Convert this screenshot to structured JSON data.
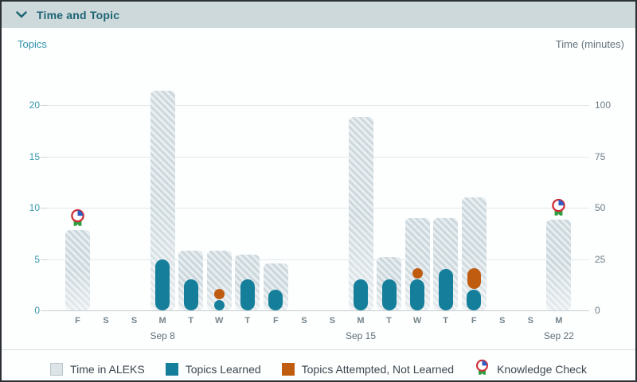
{
  "header": {
    "title": "Time and Topic"
  },
  "legend": {
    "items": [
      {
        "key": "time",
        "label": "Time in ALEKS"
      },
      {
        "key": "learned",
        "label": "Topics Learned"
      },
      {
        "key": "attempted",
        "label": "Topics Attempted, Not Learned"
      },
      {
        "key": "kc",
        "label": "Knowledge Check"
      }
    ]
  },
  "colors": {
    "header_bg": "#cdd9db",
    "header_text": "#1d6472",
    "time_bar_stripe": "#ccd8dd",
    "topics_learned": "#157f9b",
    "topics_attempted": "#c05c10",
    "left_axis_text": "#3b97ae",
    "right_axis_text": "#6e7e87",
    "kc_red": "#cf2e36",
    "kc_blue": "#2f5fc4",
    "kc_green": "#2e9e40"
  },
  "chart_data": {
    "type": "bar",
    "title": "Time and Topic",
    "left_axis": {
      "title": "Topics",
      "ticks": [
        0,
        5,
        10,
        15,
        20
      ]
    },
    "right_axis": {
      "title": "Time (minutes)",
      "ticks": [
        0,
        25,
        50,
        75,
        100
      ]
    },
    "grid": true,
    "days": [
      {
        "label": "F",
        "sublabel": "",
        "time_minutes": 39,
        "topics_learned": 0,
        "topics_attempted_not_learned": 0,
        "knowledge_check": true
      },
      {
        "label": "S",
        "sublabel": "",
        "time_minutes": 0,
        "topics_learned": 0,
        "topics_attempted_not_learned": 0,
        "knowledge_check": false
      },
      {
        "label": "S",
        "sublabel": "",
        "time_minutes": 0,
        "topics_learned": 0,
        "topics_attempted_not_learned": 0,
        "knowledge_check": false
      },
      {
        "label": "M",
        "sublabel": "Sep 8",
        "time_minutes": 107,
        "topics_learned": 5,
        "topics_attempted_not_learned": 0,
        "knowledge_check": false
      },
      {
        "label": "T",
        "sublabel": "",
        "time_minutes": 29,
        "topics_learned": 3,
        "topics_attempted_not_learned": 0,
        "knowledge_check": false
      },
      {
        "label": "W",
        "sublabel": "",
        "time_minutes": 29,
        "topics_learned": 1,
        "topics_attempted_not_learned": 1,
        "knowledge_check": false
      },
      {
        "label": "T",
        "sublabel": "",
        "time_minutes": 27,
        "topics_learned": 3,
        "topics_attempted_not_learned": 0,
        "knowledge_check": false
      },
      {
        "label": "F",
        "sublabel": "",
        "time_minutes": 23,
        "topics_learned": 2,
        "topics_attempted_not_learned": 0,
        "knowledge_check": false
      },
      {
        "label": "S",
        "sublabel": "",
        "time_minutes": 0,
        "topics_learned": 0,
        "topics_attempted_not_learned": 0,
        "knowledge_check": false
      },
      {
        "label": "S",
        "sublabel": "",
        "time_minutes": 0,
        "topics_learned": 0,
        "topics_attempted_not_learned": 0,
        "knowledge_check": false
      },
      {
        "label": "M",
        "sublabel": "Sep 15",
        "time_minutes": 94,
        "topics_learned": 3,
        "topics_attempted_not_learned": 0,
        "knowledge_check": false
      },
      {
        "label": "T",
        "sublabel": "",
        "time_minutes": 26,
        "topics_learned": 3,
        "topics_attempted_not_learned": 0,
        "knowledge_check": false
      },
      {
        "label": "W",
        "sublabel": "",
        "time_minutes": 45,
        "topics_learned": 3,
        "topics_attempted_not_learned": 1,
        "knowledge_check": false
      },
      {
        "label": "T",
        "sublabel": "",
        "time_minutes": 45,
        "topics_learned": 4,
        "topics_attempted_not_learned": 0,
        "knowledge_check": false
      },
      {
        "label": "F",
        "sublabel": "",
        "time_minutes": 55,
        "topics_learned": 2,
        "topics_attempted_not_learned": 2,
        "knowledge_check": false
      },
      {
        "label": "S",
        "sublabel": "",
        "time_minutes": 0,
        "topics_learned": 0,
        "topics_attempted_not_learned": 0,
        "knowledge_check": false
      },
      {
        "label": "S",
        "sublabel": "",
        "time_minutes": 0,
        "topics_learned": 0,
        "topics_attempted_not_learned": 0,
        "knowledge_check": false
      },
      {
        "label": "M",
        "sublabel": "Sep 22",
        "time_minutes": 44,
        "topics_learned": 0,
        "topics_attempted_not_learned": 0,
        "knowledge_check": true
      }
    ]
  }
}
